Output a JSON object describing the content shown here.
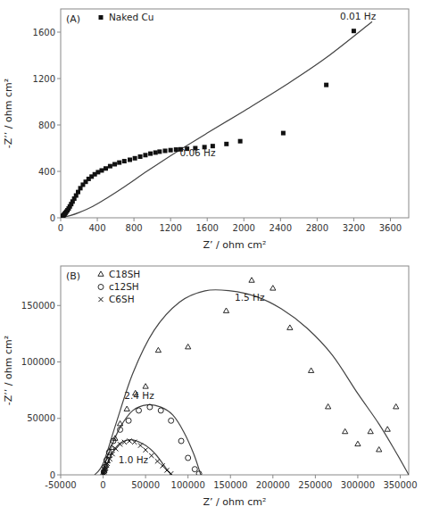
{
  "chart_data": [
    {
      "type": "scatter",
      "title": "(A)",
      "x_label": "Z’ / ohm cm²",
      "y_label": "-Z’’ / ohm cm²",
      "xlim": [
        0,
        3800
      ],
      "ylim": [
        0,
        1800
      ],
      "xticks": [
        0,
        400,
        800,
        1200,
        1600,
        2000,
        2400,
        2800,
        3200,
        3600
      ],
      "yticks": [
        0,
        400,
        800,
        1200,
        1600
      ],
      "legend": "upper left",
      "series": [
        {
          "name": "Naked Cu",
          "type": "scatter",
          "marker": "square",
          "color": "#111111",
          "x": [
            3,
            5,
            7,
            10,
            13,
            17,
            22,
            28,
            35,
            43,
            52,
            62,
            74,
            87,
            100,
            115,
            130,
            148,
            168,
            190,
            215,
            243,
            273,
            305,
            338,
            372,
            408,
            448,
            492,
            540,
            590,
            640,
            695,
            755,
            810,
            868,
            925,
            980,
            1035,
            1080,
            1140,
            1200,
            1260,
            1310,
            1380,
            1470,
            1570,
            1660,
            1810,
            1960,
            2430,
            2900,
            3200
          ],
          "values": [
            1,
            2,
            3,
            5,
            7,
            10,
            14,
            19,
            25,
            33,
            42,
            53,
            65,
            80,
            98,
            118,
            140,
            165,
            192,
            222,
            255,
            285,
            310,
            335,
            355,
            375,
            393,
            408,
            425,
            445,
            462,
            476,
            488,
            500,
            513,
            527,
            540,
            553,
            562,
            570,
            577,
            583,
            588,
            590,
            595,
            600,
            609,
            618,
            636,
            660,
            730,
            1145,
            1610
          ]
        },
        {
          "type": "line",
          "line_style": "solid",
          "color": "#444444",
          "x": [
            0,
            100,
            200,
            350,
            500,
            700,
            950,
            1250,
            1600,
            2000,
            2450,
            2900,
            3400
          ],
          "values": [
            0,
            18,
            45,
            98,
            168,
            270,
            405,
            560,
            730,
            920,
            1140,
            1380,
            1690
          ]
        }
      ],
      "annotations": [
        {
          "x": 1300,
          "y": 530,
          "text": "0.06 Hz"
        },
        {
          "x": 3050,
          "y": 1710,
          "text": "0.01 Hz"
        }
      ]
    },
    {
      "type": "scatter",
      "title": "(B)",
      "x_label": "Z’ / ohm cm²",
      "y_label": "-Z’’ / ohm cm²",
      "xlim": [
        -50000,
        360000
      ],
      "ylim": [
        0,
        185000
      ],
      "xticks": [
        -50000,
        0,
        50000,
        100000,
        150000,
        200000,
        250000,
        300000,
        350000
      ],
      "yticks": [
        0,
        50000,
        100000,
        150000
      ],
      "legend": "upper left",
      "series": [
        {
          "name": "C18SH",
          "type": "scatter",
          "marker": "triangle",
          "color": "#111111",
          "x": [
            1000,
            2000,
            3500,
            5000,
            7000,
            10000,
            14000,
            20000,
            28000,
            38000,
            50000,
            65000,
            100000,
            145000,
            175000,
            200000,
            220000,
            245000,
            265000,
            285000,
            300000,
            315000,
            325000,
            335000,
            345000
          ],
          "values": [
            3000,
            5000,
            8000,
            12000,
            17000,
            24000,
            32000,
            45000,
            58000,
            72000,
            78000,
            110000,
            113000,
            145000,
            172000,
            165000,
            130000,
            92000,
            60000,
            38000,
            27000,
            38000,
            22000,
            40000,
            60000
          ]
        },
        {
          "name": "c12SH",
          "type": "scatter",
          "marker": "circle",
          "color": "#111111",
          "x": [
            1000,
            2000,
            4000,
            7000,
            12000,
            20000,
            30000,
            42000,
            55000,
            68000,
            80000,
            92000,
            100000,
            108000,
            113000
          ],
          "values": [
            3000,
            7000,
            13000,
            20000,
            30000,
            40000,
            48000,
            57000,
            60000,
            57000,
            48000,
            30000,
            15000,
            5000,
            1000
          ]
        },
        {
          "name": "C6SH",
          "type": "scatter",
          "marker": "x",
          "color": "#111111",
          "x": [
            300,
            600,
            1000,
            1800,
            3000,
            5000,
            8000,
            11000,
            15000,
            20000,
            25000,
            31000,
            37000,
            44000,
            50000,
            57000,
            64000,
            70000,
            75000,
            80000
          ],
          "values": [
            800,
            1500,
            2500,
            4000,
            6500,
            10000,
            14000,
            18500,
            23000,
            27000,
            29000,
            30000,
            29000,
            26000,
            22000,
            17000,
            12000,
            8000,
            4000,
            1000
          ]
        },
        {
          "type": "line",
          "line_style": "solid",
          "color": "#444444",
          "x": [
            -10000,
            0,
            15000,
            35000,
            60000,
            90000,
            120000,
            150000,
            180000,
            210000,
            240000,
            270000,
            300000,
            325000,
            345000,
            360000
          ],
          "values": [
            0,
            10000,
            45000,
            90000,
            128000,
            153000,
            163000,
            163000,
            158000,
            147000,
            130000,
            106000,
            72000,
            45000,
            20000,
            0
          ]
        },
        {
          "type": "line",
          "line_style": "solid",
          "color": "#444444",
          "x": [
            -3000,
            0,
            8000,
            20000,
            35000,
            52000,
            68000,
            82000,
            95000,
            107000,
            115000
          ],
          "values": [
            0,
            5000,
            22000,
            42000,
            57000,
            62000,
            60000,
            53000,
            38000,
            18000,
            0
          ]
        },
        {
          "type": "line",
          "line_style": "solid",
          "color": "#444444",
          "x": [
            -1000,
            0,
            5000,
            12000,
            22000,
            35000,
            50000,
            62000,
            72000,
            80000
          ],
          "values": [
            0,
            2000,
            10000,
            21000,
            29000,
            31000,
            26000,
            18000,
            8000,
            0
          ]
        }
      ],
      "annotations": [
        {
          "x": 155000,
          "y": 154000,
          "text": "1.5 Hz"
        },
        {
          "x": 25000,
          "y": 67000,
          "text": "2.4 Hz"
        },
        {
          "x": 18000,
          "y": 10000,
          "text": "1.0 Hz"
        }
      ]
    }
  ]
}
